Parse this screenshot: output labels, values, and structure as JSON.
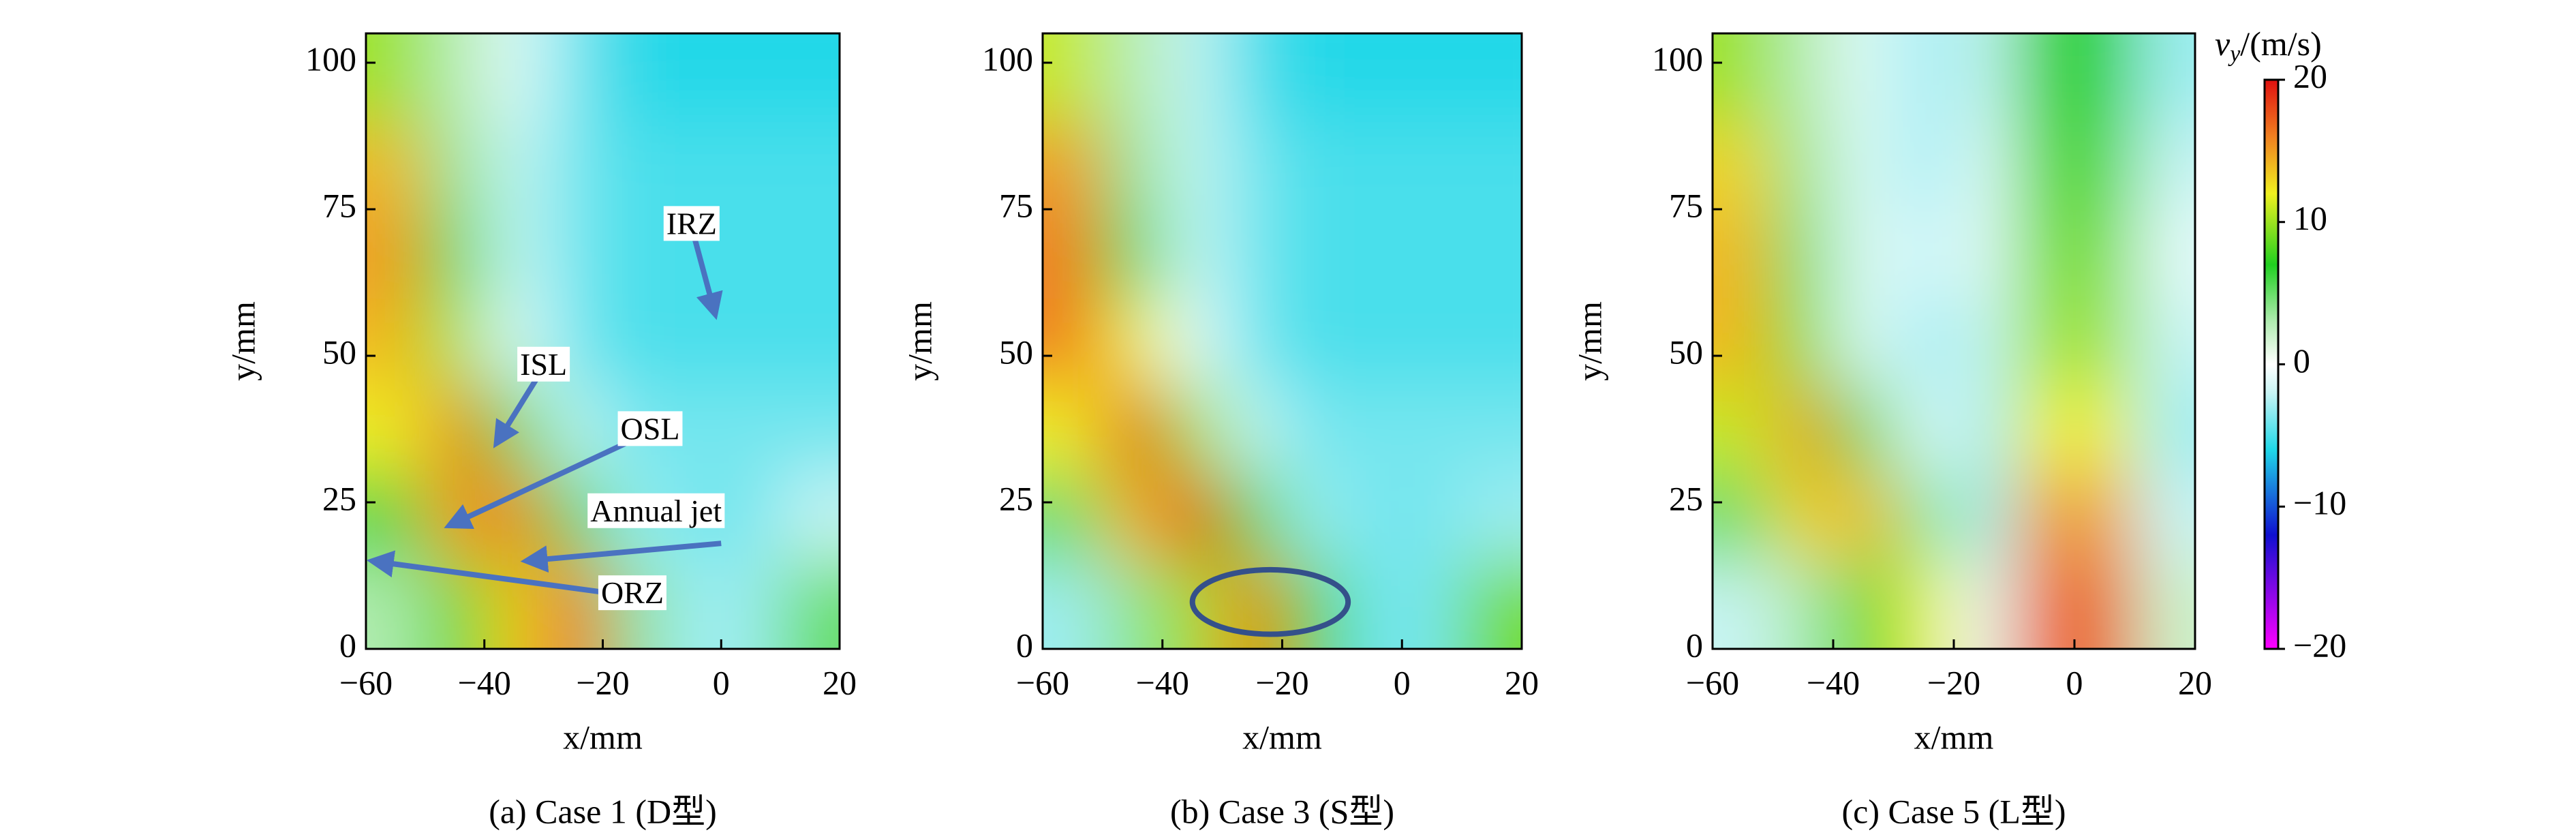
{
  "chart_data": [
    {
      "type": "heatmap",
      "caption": "(a) Case 1 (D型)",
      "x_label": "x/mm",
      "y_label": "y/mm",
      "xlim": [
        -60,
        20
      ],
      "ylim": [
        0,
        105
      ],
      "xticks": [
        {
          "value": -60,
          "label": "−60"
        },
        {
          "value": -40,
          "label": "−40"
        },
        {
          "value": -20,
          "label": "−20"
        },
        0,
        20
      ],
      "yticks": [
        0,
        25,
        50,
        75,
        100
      ],
      "x": [
        -55,
        -45,
        -35,
        -25,
        -15,
        -5,
        5,
        15
      ],
      "y": [
        7.5,
        22.5,
        37.5,
        52.5,
        67.5,
        82.5,
        97.5
      ],
      "values": [
        [
          3,
          8,
          13,
          17,
          4,
          -3,
          -3,
          5
        ],
        [
          6,
          15,
          16,
          6,
          -3,
          -4,
          -4,
          -2
        ],
        [
          12,
          16,
          8,
          -2,
          -4,
          -4,
          -4,
          -4
        ],
        [
          14,
          10,
          -1,
          -4,
          -5,
          -5,
          -5,
          -5
        ],
        [
          15,
          6,
          -2,
          -4,
          -5,
          -5,
          -5,
          -5
        ],
        [
          14,
          4,
          -2,
          -4,
          -5,
          -5,
          -5,
          -5
        ],
        [
          10,
          3,
          -1,
          -4,
          -6,
          -6,
          -6,
          -6
        ]
      ],
      "annotations": [
        "IRZ",
        "ISL",
        "OSL",
        "Annual jet",
        "ORZ"
      ]
    },
    {
      "type": "heatmap",
      "caption": "(b) Case 3 (S型)",
      "x_label": "x/mm",
      "y_label": "y/mm",
      "xlim": [
        -60,
        20
      ],
      "ylim": [
        0,
        105
      ],
      "xticks": [
        {
          "value": -60,
          "label": "−60"
        },
        {
          "value": -40,
          "label": "−40"
        },
        {
          "value": -20,
          "label": "−20"
        },
        0,
        20
      ],
      "yticks": [
        0,
        25,
        50,
        75,
        100
      ],
      "x": [
        -55,
        -45,
        -35,
        -25,
        -15,
        -5,
        5,
        15
      ],
      "y": [
        7.5,
        22.5,
        37.5,
        52.5,
        67.5,
        82.5,
        97.5
      ],
      "values": [
        [
          -3,
          4,
          10,
          16,
          8,
          -4,
          -4,
          9
        ],
        [
          5,
          14,
          18,
          8,
          -3,
          -4,
          -4,
          -3
        ],
        [
          12,
          18,
          10,
          -2,
          -4,
          -4,
          -4,
          -4
        ],
        [
          16,
          12,
          -1,
          -4,
          -5,
          -5,
          -5,
          -5
        ],
        [
          16,
          6,
          -2,
          -4,
          -5,
          -5,
          -5,
          -5
        ],
        [
          15,
          4,
          -2,
          -4,
          -5,
          -5,
          -5,
          -5
        ],
        [
          11,
          3,
          -2,
          -5,
          -6,
          -6,
          -6,
          -6
        ]
      ]
    },
    {
      "type": "heatmap",
      "caption": "(c) Case 5 (L型)",
      "x_label": "x/mm",
      "y_label": "y/mm",
      "xlim": [
        -60,
        20
      ],
      "ylim": [
        0,
        105
      ],
      "xticks": [
        {
          "value": -60,
          "label": "−60"
        },
        {
          "value": -40,
          "label": "−40"
        },
        {
          "value": -20,
          "label": "−20"
        },
        0,
        20
      ],
      "yticks": [
        0,
        25,
        50,
        75,
        100
      ],
      "x": [
        -55,
        -45,
        -35,
        -25,
        -15,
        -5,
        5,
        15
      ],
      "y": [
        7.5,
        22.5,
        37.5,
        52.5,
        67.5,
        82.5,
        97.5
      ],
      "values": [
        [
          -2,
          3,
          8,
          12,
          -1,
          17,
          17,
          2
        ],
        [
          5,
          13,
          14,
          4,
          -3,
          15,
          15,
          -2
        ],
        [
          11,
          15,
          6,
          -1,
          -3,
          12,
          12,
          -3
        ],
        [
          14,
          9,
          -1,
          -3,
          -2,
          10,
          10,
          -2
        ],
        [
          14,
          5,
          -1,
          -2,
          -1,
          9,
          9,
          -1
        ],
        [
          13,
          4,
          -1,
          -3,
          -1,
          8,
          8,
          -2
        ],
        [
          10,
          3,
          -1,
          -3,
          -2,
          7,
          7,
          -3
        ]
      ]
    }
  ],
  "colorbar": {
    "label_var": "v",
    "label_sub": "y",
    "label_unit": "/(m/s)",
    "lim": [
      -20,
      20
    ],
    "ticks": [
      {
        "value": -20,
        "label": "−20"
      },
      {
        "value": -10,
        "label": "−10"
      },
      0,
      10,
      20
    ],
    "colorscale": [
      [
        -20,
        "#ff00ff"
      ],
      [
        -12,
        "#1010d0"
      ],
      [
        -6,
        "#20d8e8"
      ],
      [
        -2,
        "#c8f4f4"
      ],
      [
        0,
        "#ffffff"
      ],
      [
        3,
        "#b0ecb0"
      ],
      [
        7,
        "#20d020"
      ],
      [
        12,
        "#f0f020"
      ],
      [
        16,
        "#f08020"
      ],
      [
        20,
        "#e01010"
      ]
    ]
  }
}
